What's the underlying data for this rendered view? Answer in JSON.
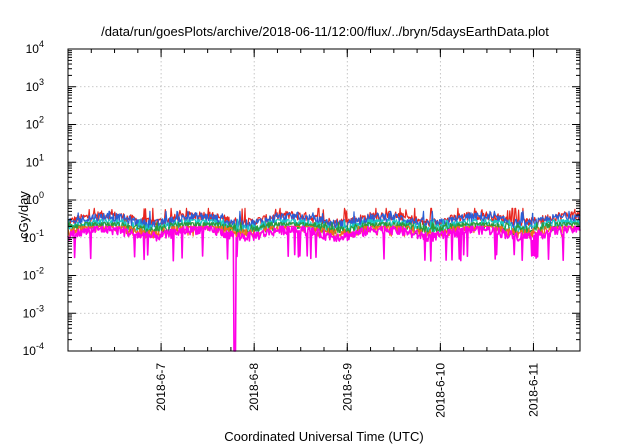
{
  "chart_data": {
    "type": "line",
    "title": "/data/run/goesPlots/archive/2018-06-11/12:00/flux/../bryn/5daysEarthData.plot",
    "xlabel": "Coordinated Universal Time (UTC)",
    "ylabel": "cGy/day",
    "yscale": "log",
    "ylim": [
      0.0001,
      10000
    ],
    "xlim": [
      "2018-06-06 00:00",
      "2018-06-11 12:00"
    ],
    "y_ticks": [
      {
        "value": 0.0001,
        "base": "10",
        "exp": "-4"
      },
      {
        "value": 0.001,
        "base": "10",
        "exp": "-3"
      },
      {
        "value": 0.01,
        "base": "10",
        "exp": "-2"
      },
      {
        "value": 0.1,
        "base": "10",
        "exp": "-1"
      },
      {
        "value": 1,
        "base": "10",
        "exp": "0"
      },
      {
        "value": 10,
        "base": "10",
        "exp": "1"
      },
      {
        "value": 100,
        "base": "10",
        "exp": "2"
      },
      {
        "value": 1000,
        "base": "10",
        "exp": "3"
      },
      {
        "value": 10000,
        "base": "10",
        "exp": "4"
      }
    ],
    "x_ticks": [
      "2018-6-7",
      "2018-6-8",
      "2018-6-9",
      "2018-6-10",
      "2018-6-11"
    ],
    "grid": true,
    "legend": "none",
    "series": [
      {
        "color": "#e8261f",
        "typical": 0.33,
        "range": [
          0.2,
          0.6
        ]
      },
      {
        "color": "#2a5fd6",
        "typical": 0.3,
        "range": [
          0.18,
          0.5
        ]
      },
      {
        "color": "#18c9c4",
        "typical": 0.22,
        "range": [
          0.14,
          0.3
        ]
      },
      {
        "color": "#2b9a3a",
        "typical": 0.2,
        "range": [
          0.14,
          0.25
        ]
      },
      {
        "color": "#f06e1a",
        "typical": 0.17,
        "range": [
          0.13,
          0.2
        ]
      },
      {
        "color": "#ff00e6",
        "typical": 0.14,
        "range": [
          0.03,
          0.2
        ],
        "dropout": {
          "time": "2018-06-07 19:00",
          "value": 0.0001
        }
      }
    ]
  }
}
